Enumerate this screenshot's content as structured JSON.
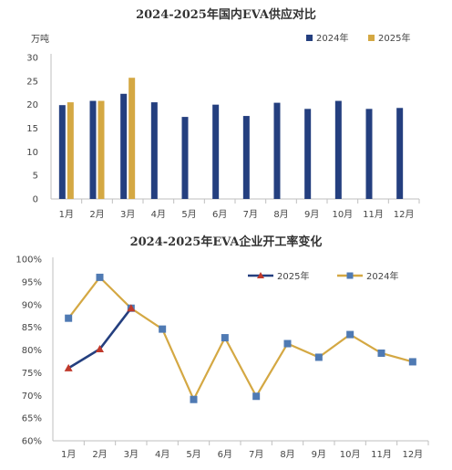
{
  "chart_data": [
    {
      "type": "bar",
      "title": "2024-2025年国内EVA供应对比",
      "ylabel": "万吨",
      "xlabel": "",
      "categories": [
        "1月",
        "2月",
        "3月",
        "4月",
        "5月",
        "6月",
        "7月",
        "8月",
        "9月",
        "10月",
        "11月",
        "12月"
      ],
      "ylim": [
        0,
        30
      ],
      "yticks": [
        "0",
        "5",
        "10",
        "15",
        "20",
        "25",
        "30"
      ],
      "grid": false,
      "legend_position": "top-right",
      "series": [
        {
          "name": "2024年",
          "color": "#243f7f",
          "values": [
            19.9,
            20.8,
            22.3,
            20.5,
            17.4,
            20.0,
            17.6,
            20.4,
            19.1,
            20.8,
            19.1,
            19.3
          ]
        },
        {
          "name": "2025年",
          "color": "#d4a843",
          "values": [
            20.5,
            20.8,
            25.7,
            null,
            null,
            null,
            null,
            null,
            null,
            null,
            null,
            null
          ]
        }
      ]
    },
    {
      "type": "line",
      "title": "2024-2025年EVA企业开工率变化",
      "xlabel": "",
      "ylabel": "",
      "categories": [
        "1月",
        "2月",
        "3月",
        "4月",
        "5月",
        "6月",
        "7月",
        "8月",
        "9月",
        "10月",
        "11月",
        "12月"
      ],
      "ylim": [
        60,
        100
      ],
      "yticks": [
        "60%",
        "65%",
        "70%",
        "75%",
        "80%",
        "85%",
        "90%",
        "95%",
        "100%"
      ],
      "grid": false,
      "legend_position": "top-right",
      "series": [
        {
          "name": "2025年",
          "color": "#243f7f",
          "marker": "triangle",
          "marker_color": "#c0392b",
          "values": [
            76,
            80.2,
            89.2,
            null,
            null,
            null,
            null,
            null,
            null,
            null,
            null,
            null
          ]
        },
        {
          "name": "2024年",
          "color": "#d4a843",
          "marker": "square",
          "marker_color": "#4f7ab3",
          "values": [
            87,
            96,
            89.2,
            84.6,
            69.1,
            82.7,
            69.8,
            81.4,
            78.4,
            83.4,
            79.3,
            77.4
          ]
        }
      ]
    }
  ]
}
